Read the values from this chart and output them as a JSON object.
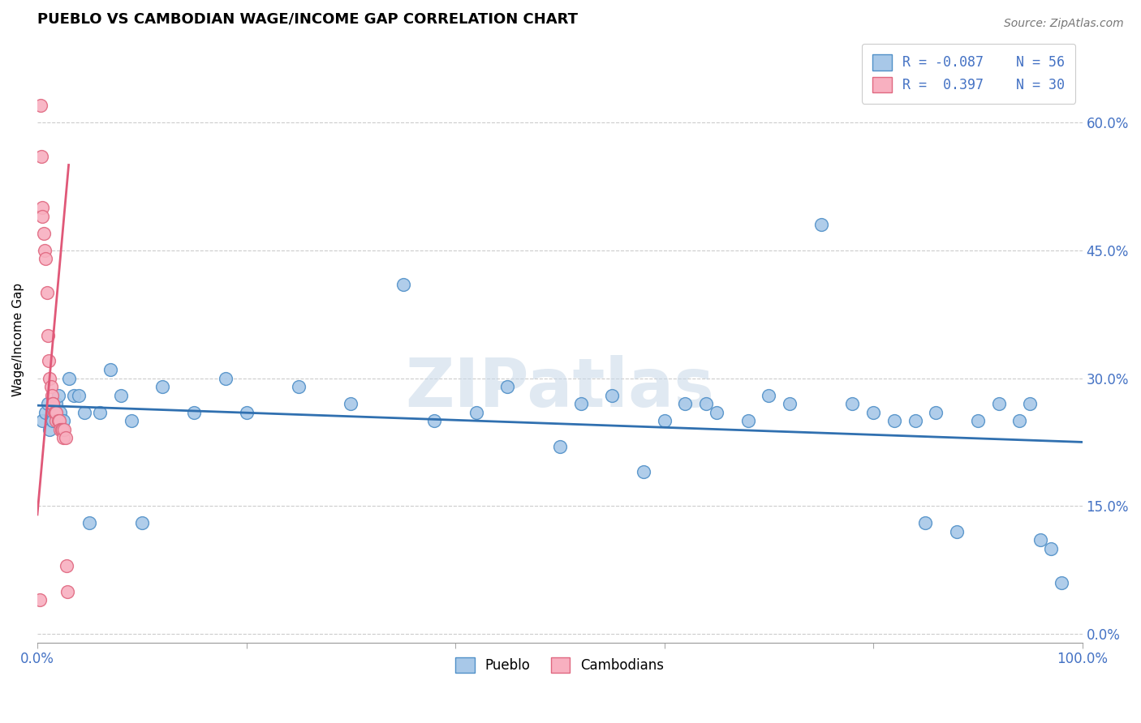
{
  "title": "PUEBLO VS CAMBODIAN WAGE/INCOME GAP CORRELATION CHART",
  "source": "Source: ZipAtlas.com",
  "ylabel": "Wage/Income Gap",
  "xlim": [
    0,
    1
  ],
  "ylim": [
    -0.01,
    0.7
  ],
  "xticks": [
    0.0,
    0.2,
    0.4,
    0.6,
    0.8,
    1.0
  ],
  "xtick_labels_show": [
    "0.0%",
    "",
    "",
    "",
    "",
    "100.0%"
  ],
  "yticks": [
    0.0,
    0.15,
    0.3,
    0.45,
    0.6
  ],
  "ytick_labels": [
    "0.0%",
    "15.0%",
    "30.0%",
    "45.0%",
    "60.0%"
  ],
  "R_pueblo": -0.087,
  "N_pueblo": 56,
  "R_cambodian": 0.397,
  "N_cambodian": 30,
  "pueblo_color": "#a8c8e8",
  "cambodian_color": "#f8b0c0",
  "pueblo_edge_color": "#5090c8",
  "cambodian_edge_color": "#e06880",
  "pueblo_line_color": "#3070b0",
  "cambodian_line_color": "#e05878",
  "pueblo_x": [
    0.005,
    0.008,
    0.01,
    0.012,
    0.015,
    0.015,
    0.018,
    0.02,
    0.022,
    0.025,
    0.03,
    0.035,
    0.04,
    0.045,
    0.05,
    0.06,
    0.07,
    0.08,
    0.09,
    0.1,
    0.12,
    0.15,
    0.18,
    0.2,
    0.25,
    0.3,
    0.35,
    0.38,
    0.42,
    0.45,
    0.5,
    0.52,
    0.55,
    0.58,
    0.6,
    0.62,
    0.64,
    0.65,
    0.68,
    0.7,
    0.72,
    0.75,
    0.78,
    0.8,
    0.82,
    0.84,
    0.85,
    0.86,
    0.88,
    0.9,
    0.92,
    0.94,
    0.95,
    0.96,
    0.97,
    0.98
  ],
  "pueblo_y": [
    0.25,
    0.26,
    0.27,
    0.24,
    0.26,
    0.25,
    0.27,
    0.28,
    0.26,
    0.25,
    0.3,
    0.28,
    0.28,
    0.26,
    0.13,
    0.26,
    0.31,
    0.28,
    0.25,
    0.13,
    0.29,
    0.26,
    0.3,
    0.26,
    0.29,
    0.27,
    0.41,
    0.25,
    0.26,
    0.29,
    0.22,
    0.27,
    0.28,
    0.19,
    0.25,
    0.27,
    0.27,
    0.26,
    0.25,
    0.28,
    0.27,
    0.48,
    0.27,
    0.26,
    0.25,
    0.25,
    0.13,
    0.26,
    0.12,
    0.25,
    0.27,
    0.25,
    0.27,
    0.11,
    0.1,
    0.06
  ],
  "cambodian_x": [
    0.002,
    0.003,
    0.004,
    0.005,
    0.005,
    0.006,
    0.007,
    0.008,
    0.009,
    0.01,
    0.011,
    0.012,
    0.013,
    0.014,
    0.015,
    0.015,
    0.016,
    0.017,
    0.018,
    0.018,
    0.02,
    0.021,
    0.022,
    0.023,
    0.024,
    0.025,
    0.026,
    0.027,
    0.028,
    0.029
  ],
  "cambodian_y": [
    0.04,
    0.62,
    0.56,
    0.5,
    0.49,
    0.47,
    0.45,
    0.44,
    0.4,
    0.35,
    0.32,
    0.3,
    0.29,
    0.28,
    0.27,
    0.27,
    0.26,
    0.26,
    0.25,
    0.26,
    0.25,
    0.25,
    0.24,
    0.24,
    0.24,
    0.23,
    0.24,
    0.23,
    0.08,
    0.05
  ],
  "pueblo_trend_x": [
    0.0,
    1.0
  ],
  "pueblo_trend_y": [
    0.268,
    0.225
  ],
  "cambodian_trend_x": [
    0.0,
    0.03
  ],
  "cambodian_trend_y": [
    0.14,
    0.55
  ],
  "watermark_text": "ZIPatlas",
  "watermark_color": "#c8d8e8",
  "background_color": "#ffffff",
  "grid_color": "#cccccc",
  "title_color": "#000000",
  "axis_label_color": "#4472c4",
  "ylabel_color": "#000000"
}
